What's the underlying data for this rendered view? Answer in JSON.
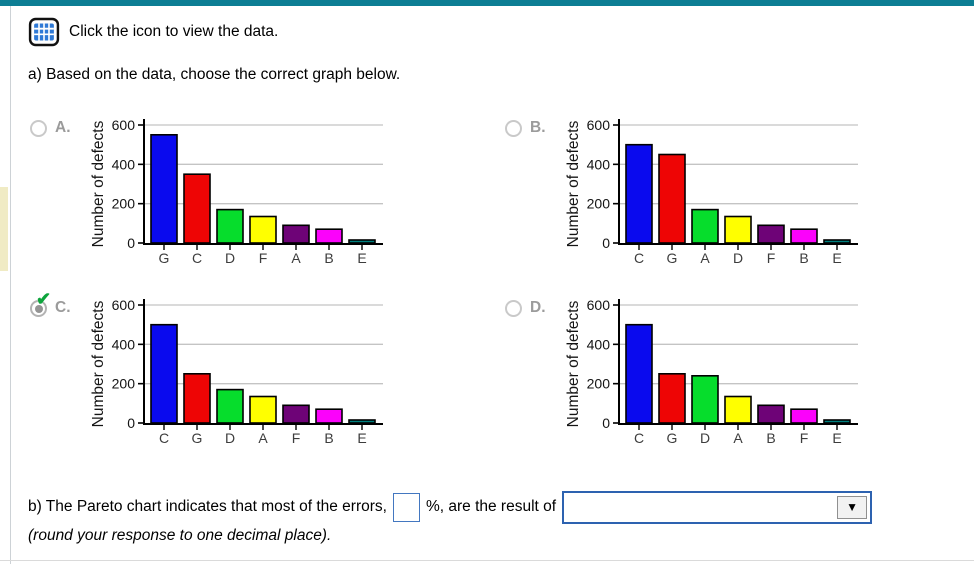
{
  "header": {
    "icon": "data-table-icon",
    "instruction": "Click the icon to view the data."
  },
  "question_a": "a) Based on the data, choose the correct graph below.",
  "options": [
    {
      "label": "A.",
      "selected": false
    },
    {
      "label": "B.",
      "selected": false
    },
    {
      "label": "C.",
      "selected": true
    },
    {
      "label": "D.",
      "selected": false
    }
  ],
  "question_b": {
    "prefix": "b) The Pareto chart indicates that most of the errors,",
    "percent_input": {
      "value": "",
      "placeholder": ""
    },
    "middle": "%, are the result of",
    "dropdown": {
      "selected_value": "",
      "arrow_icon": "dropdown-arrow-icon",
      "arrow_glyph": "▼"
    },
    "note": "(round your response to one decimal place)."
  },
  "colors": {
    "top_bar": "#0d7e94",
    "left_marker": "#f0ebc4",
    "answer_blue_border": "#2d62b0",
    "check_green": "#0da43c",
    "grid_line": "#c4c4c4",
    "bar_palette": [
      "#0a0aee",
      "#ee0505",
      "#06dd2c",
      "#ffff00",
      "#6e0377",
      "#fb02fb",
      "#00807f"
    ]
  },
  "chart_data": [
    {
      "type": "bar",
      "title": "",
      "ylabel": "Number of defects",
      "xlabel": "",
      "ylim": [
        0,
        600
      ],
      "yticks": [
        0,
        200,
        400,
        600
      ],
      "grid": true,
      "categories": [
        "G",
        "C",
        "D",
        "F",
        "A",
        "B",
        "E"
      ],
      "values": [
        550,
        350,
        170,
        135,
        90,
        70,
        15
      ]
    },
    {
      "type": "bar",
      "title": "",
      "ylabel": "Number of defects",
      "xlabel": "",
      "ylim": [
        0,
        600
      ],
      "yticks": [
        0,
        200,
        400,
        600
      ],
      "grid": true,
      "categories": [
        "C",
        "G",
        "A",
        "D",
        "F",
        "B",
        "E"
      ],
      "values": [
        500,
        450,
        170,
        135,
        90,
        70,
        15
      ]
    },
    {
      "type": "bar",
      "title": "",
      "ylabel": "Number of defects",
      "xlabel": "",
      "ylim": [
        0,
        600
      ],
      "yticks": [
        0,
        200,
        400,
        600
      ],
      "grid": true,
      "categories": [
        "C",
        "G",
        "D",
        "A",
        "F",
        "B",
        "E"
      ],
      "values": [
        500,
        250,
        170,
        135,
        90,
        70,
        15
      ]
    },
    {
      "type": "bar",
      "title": "",
      "ylabel": "Number of defects",
      "xlabel": "",
      "ylim": [
        0,
        600
      ],
      "yticks": [
        0,
        200,
        400,
        600
      ],
      "grid": true,
      "categories": [
        "C",
        "G",
        "D",
        "A",
        "B",
        "F",
        "E"
      ],
      "values": [
        500,
        250,
        240,
        135,
        90,
        70,
        15
      ]
    }
  ]
}
